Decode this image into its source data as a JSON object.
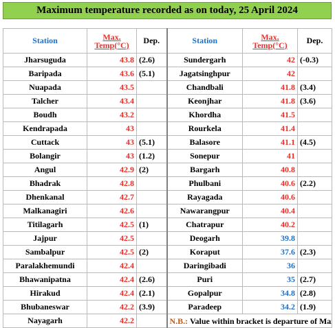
{
  "title": "Maximum temperature recorded as on today, 25 April 2024",
  "headers": {
    "station": "Station",
    "temp_line1": "Max.",
    "temp_line2": "Temp(°C)",
    "dep": "Dep."
  },
  "left_rows": [
    {
      "station": "Jharsuguda",
      "temp": "43.8",
      "dep": "(2.6)"
    },
    {
      "station": "Baripada",
      "temp": "43.6",
      "dep": "(5.1)"
    },
    {
      "station": "Nuapada",
      "temp": "43.5",
      "dep": ""
    },
    {
      "station": "Talcher",
      "temp": "43.4",
      "dep": ""
    },
    {
      "station": "Boudh",
      "temp": "43.2",
      "dep": ""
    },
    {
      "station": "Kendrapada",
      "temp": "43",
      "dep": ""
    },
    {
      "station": "Cuttack",
      "temp": "43",
      "dep": "(5.1)"
    },
    {
      "station": "Bolangir",
      "temp": "43",
      "dep": "(1.2)"
    },
    {
      "station": "Angul",
      "temp": "42.9",
      "dep": "(2)"
    },
    {
      "station": "Bhadrak",
      "temp": "42.8",
      "dep": ""
    },
    {
      "station": "Dhenkanal",
      "temp": "42.7",
      "dep": ""
    },
    {
      "station": "Malkanagiri",
      "temp": "42.6",
      "dep": ""
    },
    {
      "station": "Titilagarh",
      "temp": "42.5",
      "dep": "(1)"
    },
    {
      "station": "Jajpur",
      "temp": "42.5",
      "dep": ""
    },
    {
      "station": "Sambalpur",
      "temp": "42.5",
      "dep": "(2)"
    },
    {
      "station": "Paralakhemundi",
      "temp": "42.4",
      "dep": ""
    },
    {
      "station": "Bhawanipatna",
      "temp": "42.4",
      "dep": "(2.6)"
    },
    {
      "station": "Hirakud",
      "temp": "42.4",
      "dep": "(2.1)"
    },
    {
      "station": "Bhubaneswar",
      "temp": "42.2",
      "dep": "(3.9)"
    },
    {
      "station": "Nayagarh",
      "temp": "42.2",
      "dep": ""
    }
  ],
  "right_rows": [
    {
      "station": "Sundergarh",
      "temp": "42",
      "dep": "(-0.3)",
      "color": "#e8302a"
    },
    {
      "station": "Jagatsinghpur",
      "temp": "42",
      "dep": "",
      "color": "#e8302a"
    },
    {
      "station": "Chandbali",
      "temp": "41.8",
      "dep": "(3.4)",
      "color": "#e8302a"
    },
    {
      "station": "Keonjhar",
      "temp": "41.8",
      "dep": "(3.6)",
      "color": "#e8302a"
    },
    {
      "station": "Khordha",
      "temp": "41.5",
      "dep": "",
      "color": "#e8302a"
    },
    {
      "station": "Rourkela",
      "temp": "41.4",
      "dep": "",
      "color": "#e8302a"
    },
    {
      "station": "Balasore",
      "temp": "41.1",
      "dep": "(4.5)",
      "color": "#e8302a"
    },
    {
      "station": "Sonepur",
      "temp": "41",
      "dep": "",
      "color": "#e8302a"
    },
    {
      "station": "Bargarh",
      "temp": "40.8",
      "dep": "",
      "color": "#e8302a"
    },
    {
      "station": "Phulbani",
      "temp": "40.6",
      "dep": "(2.2)",
      "color": "#e8302a"
    },
    {
      "station": "Rayagada",
      "temp": "40.6",
      "dep": "",
      "color": "#e8302a"
    },
    {
      "station": "Nawarangpur",
      "temp": "40.4",
      "dep": "",
      "color": "#e8302a"
    },
    {
      "station": "Chatrapur",
      "temp": "40.2",
      "dep": "",
      "color": "#e8302a"
    },
    {
      "station": "Deogarh",
      "temp": "39.8",
      "dep": "",
      "color": "#1f6fc5"
    },
    {
      "station": "Koraput",
      "temp": "37.6",
      "dep": "(2.3)",
      "color": "#1f6fc5"
    },
    {
      "station": "Daringibadi",
      "temp": "36",
      "dep": "",
      "color": "#1f6fc5"
    },
    {
      "station": "Puri",
      "temp": "35",
      "dep": "(2.7)",
      "color": "#1f6fc5"
    },
    {
      "station": "Gopalpur",
      "temp": "34.8",
      "dep": "(2.8)",
      "color": "#1f6fc5"
    },
    {
      "station": "Paradeep",
      "temp": "34.2",
      "dep": "(1.9)",
      "color": "#1f6fc5"
    }
  ],
  "note": {
    "label": "N.B.:",
    "text": "Value within bracket is departure of Max.T from normal for available stations."
  }
}
